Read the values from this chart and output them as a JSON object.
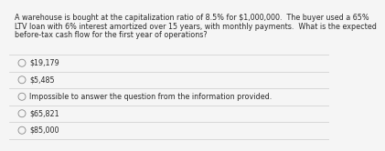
{
  "question_lines": [
    "A warehouse is bought at the capitalization ratio of 8.5% for $1,000,000.  The buyer used a 65%",
    "LTV loan with 6% interest amortized over 15 years, with monthly payments.  What is the expected",
    "before-tax cash flow for the first year of operations?"
  ],
  "options": [
    "$19,179",
    "$5,485",
    "Impossible to answer the question from the information provided.",
    "$65,821",
    "$85,000"
  ],
  "bg_color": "#f5f5f5",
  "text_color": "#2a2a2a",
  "line_color": "#cccccc",
  "question_fontsize": 5.8,
  "option_fontsize": 5.8,
  "circle_edge_color": "#888888",
  "circle_face_color": "#f5f5f5"
}
